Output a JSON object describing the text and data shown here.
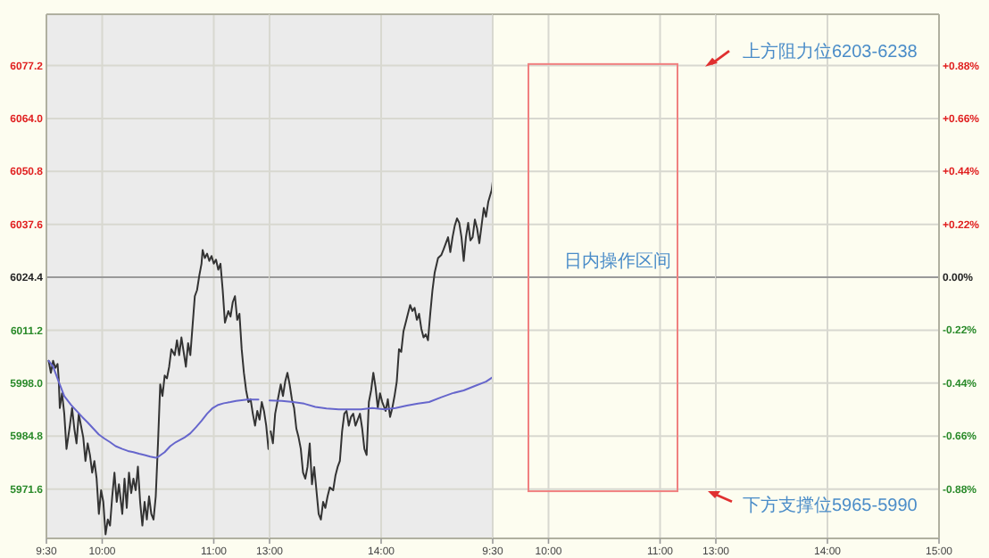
{
  "chart_data": [
    {
      "type": "line",
      "xlim": [
        9.5,
        11.5
      ],
      "ylim": [
        5959.3,
        6090.0
      ],
      "xticks": [
        {
          "value": 9.5,
          "label": "9:30"
        },
        {
          "value": 10,
          "label": "10:00"
        },
        {
          "value": 11,
          "label": "11:00"
        }
      ],
      "yticks": [
        {
          "value": 5971.6,
          "label": "5971.6"
        },
        {
          "value": 5984.8,
          "label": "5984.8"
        },
        {
          "value": 5998.0,
          "label": "5998.0"
        },
        {
          "value": 6011.2,
          "label": "6011.2"
        },
        {
          "value": 6024.4,
          "label": "6024.4"
        },
        {
          "value": 6037.6,
          "label": "6037.6"
        },
        {
          "value": 6050.8,
          "label": "6050.8"
        },
        {
          "value": 6064.0,
          "label": "6064.0"
        },
        {
          "value": 6077.2,
          "label": "6077.2"
        }
      ],
      "grid": true,
      "marker": "none",
      "line_style": "solid",
      "ref_lines": [
        {
          "axis": "y",
          "value": 6024.4,
          "color": "#999999"
        }
      ],
      "bands": [
        {
          "axis": "x",
          "from": 9.5,
          "to": 11.5,
          "color": "#ebebeb"
        }
      ],
      "series": [
        {
          "color": "#333333",
          "x": [
            9.52,
            9.54,
            9.56,
            9.58,
            9.6,
            9.61,
            9.62,
            9.64,
            9.66,
            9.68,
            9.71,
            9.73,
            9.75,
            9.77,
            9.79,
            9.81,
            9.83,
            9.85,
            9.87,
            9.89,
            9.91,
            9.93,
            9.95,
            9.97,
            9.99,
            10.01,
            10.03,
            10.05,
            10.07,
            10.09,
            10.11,
            10.13,
            10.15,
            10.18,
            10.2,
            10.22,
            10.24,
            10.26,
            10.28,
            10.3,
            10.32,
            10.34,
            10.36,
            10.38,
            10.4,
            10.42,
            10.44,
            10.46,
            10.48,
            10.5,
            10.52,
            10.54,
            10.56,
            10.58,
            10.6,
            10.62,
            10.65,
            10.67,
            10.69,
            10.71,
            10.73,
            10.75,
            10.77,
            10.79,
            10.81,
            10.83,
            10.85,
            10.87,
            10.89,
            10.9,
            10.92,
            10.94,
            10.96,
            10.98,
            11.0,
            11.02,
            11.04,
            11.06,
            11.08,
            11.1,
            11.13,
            11.15,
            11.17,
            11.19,
            11.21,
            11.23,
            11.25,
            11.27,
            11.29,
            11.31,
            11.33,
            11.35,
            11.37,
            11.39,
            11.41,
            11.43,
            11.45,
            11.47,
            11.49
          ],
          "values": [
            6003.6,
            6000.6,
            6003.6,
            6001.8,
            6002.8,
            5999.2,
            5991.8,
            5995.5,
            5990.4,
            5981.6,
            5987.4,
            5991.8,
            5986.7,
            5983.0,
            5990.4,
            5987.4,
            5984.5,
            5978.6,
            5983.0,
            5980.1,
            5975.7,
            5978.6,
            5974.2,
            5965.4,
            5971.3,
            5968.4,
            5960.3,
            5964.0,
            5962.5,
            5969.8,
            5975.7,
            5968.4,
            5972.8,
            5965.4,
            5974.2,
            5966.9,
            5975.7,
            5970.6,
            5974.2,
            5971.3,
            5977.2,
            5968.4,
            5962.5,
            5968.4,
            5964.0,
            5969.8,
            5965.4,
            5964.0,
            5969.8,
            5983.0,
            5997.7,
            5994.8,
            5999.9,
            5999.2,
            6002.1,
            6006.5,
            6005.0,
            6008.7,
            6005.0,
            6009.4,
            6005.8,
            6002.1,
            6008.0,
            6005.0,
            6012.4,
            6019.7,
            6021.2,
            6024.8,
            6027.8,
            6031.2,
            6029.2,
            6030.3,
            6028.5,
            6029.7,
            6027.8,
            6028.8,
            6026.3,
            6027.8,
            6021.2,
            6013.1,
            6016.0,
            6014.6,
            6018.2,
            6019.7,
            6013.8,
            6015.3,
            6006.5,
            6000.6,
            5996.2,
            5993.3,
            5994.0,
            5990.4,
            5987.4,
            5991.1,
            5988.9,
            5993.3,
            5991.1,
            5987.4,
            5981.6
          ]
        },
        {
          "color": "#6666cc",
          "x": [
            9.52,
            9.56,
            9.61,
            9.66,
            9.72,
            9.77,
            9.82,
            9.87,
            9.92,
            9.97,
            10.02,
            10.07,
            10.12,
            10.18,
            10.23,
            10.28,
            10.33,
            10.38,
            10.43,
            10.48,
            10.51,
            10.56,
            10.61,
            10.66,
            10.74,
            10.79,
            10.84,
            10.89,
            10.94,
            10.99,
            11.04,
            11.09,
            11.15,
            11.2,
            11.3,
            11.4
          ],
          "values": [
            6003.6,
            6002.1,
            5998.4,
            5994.8,
            5992.6,
            5991.1,
            5989.6,
            5988.2,
            5986.7,
            5985.2,
            5984.2,
            5983.3,
            5982.3,
            5981.6,
            5981.1,
            5980.8,
            5980.4,
            5980.1,
            5979.7,
            5979.4,
            5979.8,
            5980.8,
            5982.3,
            5983.3,
            5984.5,
            5985.5,
            5987.0,
            5988.6,
            5990.4,
            5991.8,
            5992.6,
            5993.0,
            5993.3,
            5993.6,
            5993.9,
            5993.9
          ]
        }
      ]
    },
    {
      "type": "line",
      "xlim": [
        13,
        15
      ],
      "ylim": [
        5959.3,
        6090.0
      ],
      "tick_labels": "x",
      "xticks": [
        {
          "value": 13,
          "label": "13:00"
        },
        {
          "value": 14,
          "label": "14:00"
        }
      ],
      "yticks": [
        5971.6,
        5984.8,
        5998.0,
        6011.2,
        6024.4,
        6037.6,
        6050.8,
        6064.0,
        6077.2
      ],
      "grid": true,
      "marker": "none",
      "line_style": "solid",
      "ref_lines": [
        {
          "axis": "y",
          "value": 6024.4,
          "color": "#999999"
        }
      ],
      "bands": [
        {
          "axis": "x",
          "from": 13,
          "to": 15,
          "color": "#ebebeb"
        }
      ],
      "series": [
        {
          "color": "#333333",
          "x": [
            13.01,
            13.03,
            13.05,
            13.07,
            13.1,
            13.12,
            13.14,
            13.16,
            13.18,
            13.2,
            13.22,
            13.24,
            13.26,
            13.28,
            13.3,
            13.32,
            13.34,
            13.36,
            13.38,
            13.4,
            13.42,
            13.44,
            13.46,
            13.48,
            13.5,
            13.52,
            13.54,
            13.57,
            13.59,
            13.61,
            13.63,
            13.65,
            13.67,
            13.69,
            13.71,
            13.73,
            13.75,
            13.77,
            13.79,
            13.81,
            13.83,
            13.85,
            13.87,
            13.89,
            13.91,
            13.93,
            13.95,
            13.97,
            13.99,
            14.01,
            14.04,
            14.06,
            14.08,
            14.1,
            14.12,
            14.14,
            14.16,
            14.18,
            14.2,
            14.22,
            14.24,
            14.26,
            14.28,
            14.3,
            14.32,
            14.34,
            14.36,
            14.38,
            14.4,
            14.42,
            14.44,
            14.46,
            14.48,
            14.51,
            14.54,
            14.56,
            14.58,
            14.6,
            14.62,
            14.64,
            14.66,
            14.68,
            14.7,
            14.72,
            14.74,
            14.76,
            14.78,
            14.8,
            14.82,
            14.84,
            14.86,
            14.88,
            14.9,
            14.92,
            14.94,
            14.96,
            14.99,
            15.0
          ],
          "values": [
            5986.0,
            5983.0,
            5990.4,
            5993.3,
            5997.7,
            5994.8,
            5998.4,
            6000.6,
            5997.7,
            5994.0,
            5991.8,
            5986.7,
            5984.5,
            5981.6,
            5975.7,
            5974.2,
            5977.1,
            5983.0,
            5972.8,
            5977.1,
            5971.3,
            5965.4,
            5964.0,
            5968.4,
            5966.9,
            5969.8,
            5972.0,
            5971.3,
            5974.9,
            5977.1,
            5978.6,
            5986.0,
            5990.4,
            5991.1,
            5987.4,
            5989.6,
            5990.4,
            5987.4,
            5988.9,
            5990.4,
            5986.7,
            5981.6,
            5980.1,
            5993.3,
            5996.2,
            6000.6,
            5997.0,
            5991.8,
            5995.5,
            5993.3,
            5991.1,
            5994.0,
            5989.6,
            5991.8,
            5994.8,
            5998.4,
            6006.5,
            6005.8,
            6010.9,
            6013.1,
            6015.3,
            6017.5,
            6016.0,
            6016.8,
            6013.8,
            6015.3,
            6011.6,
            6009.4,
            6010.2,
            6008.7,
            6015.3,
            6021.2,
            6025.6,
            6029.2,
            6030.0,
            6031.4,
            6032.9,
            6034.4,
            6030.7,
            6034.4,
            6037.3,
            6039.1,
            6038.0,
            6034.4,
            6028.5,
            6034.4,
            6038.0,
            6033.6,
            6034.4,
            6038.8,
            6036.6,
            6032.9,
            6037.3,
            6041.7,
            6039.5,
            6043.2,
            6046.1,
            6048.3
          ]
        },
        {
          "color": "#6666cc",
          "x": [
            13.0,
            13.11,
            13.21,
            13.31,
            13.41,
            13.51,
            13.62,
            13.72,
            13.82,
            13.92,
            14.03,
            14.13,
            14.23,
            14.33,
            14.43,
            14.54,
            14.64,
            14.74,
            14.84,
            14.94,
            15.0
          ],
          "values": [
            5993.7,
            5993.6,
            5993.3,
            5992.9,
            5992.1,
            5991.7,
            5991.5,
            5991.5,
            5991.5,
            5991.8,
            5991.5,
            5991.8,
            5992.4,
            5992.9,
            5993.3,
            5994.5,
            5995.5,
            5996.2,
            5997.3,
            5998.4,
            5999.5
          ]
        }
      ]
    },
    {
      "type": "line",
      "xlim": [
        9.5,
        11.5
      ],
      "ylim": [
        5959.3,
        6090.0
      ],
      "tick_labels": "x",
      "xticks": [
        {
          "value": 9.5,
          "label": "9:30"
        },
        {
          "value": 10,
          "label": "10:00"
        },
        {
          "value": 11,
          "label": "11:00"
        }
      ],
      "yticks": [
        5971.6,
        5984.8,
        5998.0,
        6011.2,
        6024.4,
        6037.6,
        6050.8,
        6064.0,
        6077.2
      ],
      "grid": true,
      "ref_lines": [
        {
          "axis": "y",
          "value": 6024.4,
          "color": "#999999"
        }
      ],
      "annotations": [
        "日内操作区间"
      ]
    },
    {
      "type": "line",
      "xlim": [
        13,
        15
      ],
      "ylim": [
        5959.3,
        6090.0
      ],
      "y2lim": [
        -1.085,
        1.093
      ],
      "xticks": [
        {
          "value": 13,
          "label": "13:00"
        },
        {
          "value": 14,
          "label": "14:00"
        },
        {
          "value": 15,
          "label": "15:00"
        }
      ],
      "y2ticks": [
        {
          "value": -0.88,
          "label": "-0.88%"
        },
        {
          "value": -0.66,
          "label": "-0.66%"
        },
        {
          "value": -0.44,
          "label": "-0.44%"
        },
        {
          "value": -0.22,
          "label": "-0.22%"
        },
        {
          "value": 0,
          "label": "0.00%"
        },
        {
          "value": 0.22,
          "label": "+0.22%"
        },
        {
          "value": 0.44,
          "label": "+0.44%"
        },
        {
          "value": 0.66,
          "label": "+0.66%"
        },
        {
          "value": 0.88,
          "label": "+0.88%"
        }
      ],
      "grid": true,
      "ref_lines": [
        {
          "axis": "y",
          "value": 6024.4,
          "color": "#999999"
        }
      ],
      "annotations": [
        "上方阻力位6203-6238",
        "下方支撑位5965-5990"
      ]
    }
  ]
}
